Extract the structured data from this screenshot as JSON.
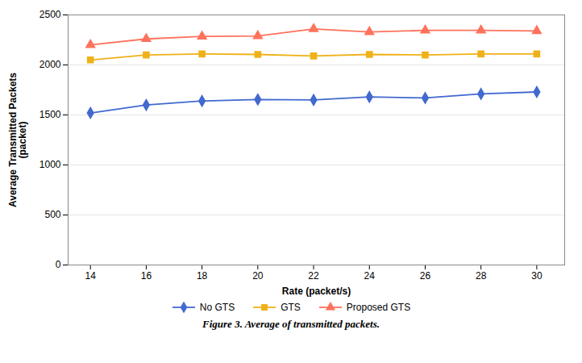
{
  "chart_data": {
    "type": "line",
    "caption": "Figure 3. Average of transmitted packets.",
    "xlabel": "Rate (packet/s)",
    "ylabel": "Average Transmitted Packets\n(packet)",
    "x": [
      14,
      16,
      18,
      20,
      22,
      24,
      26,
      28,
      30
    ],
    "series": [
      {
        "name": "No GTS",
        "marker": "diamond",
        "values": [
          1520,
          1600,
          1640,
          1655,
          1650,
          1680,
          1670,
          1710,
          1730
        ]
      },
      {
        "name": "GTS",
        "marker": "square",
        "values": [
          2050,
          2100,
          2110,
          2105,
          2090,
          2105,
          2100,
          2110,
          2110
        ]
      },
      {
        "name": "Proposed GTS",
        "marker": "triangle",
        "values": [
          2200,
          2260,
          2285,
          2290,
          2360,
          2330,
          2345,
          2345,
          2340
        ]
      }
    ],
    "xlim": [
      13.2,
      31
    ],
    "xticks": [
      14,
      16,
      18,
      20,
      22,
      24,
      26,
      28,
      30
    ],
    "ylim": [
      0,
      2500
    ],
    "yticks": [
      0,
      500,
      1000,
      1500,
      2000,
      2500
    ],
    "grid": "y",
    "legend": "bottom"
  }
}
